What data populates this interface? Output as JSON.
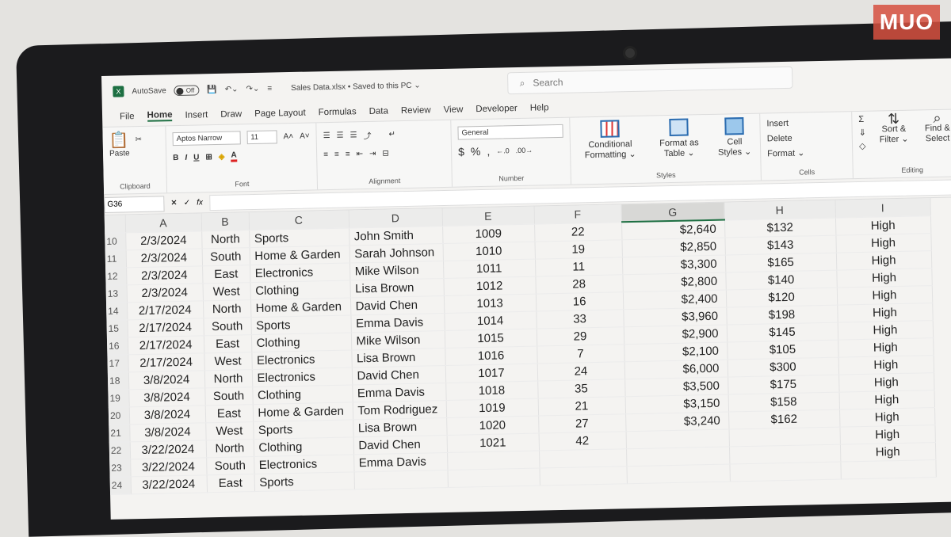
{
  "titlebar": {
    "autosave_label": "AutoSave",
    "autosave_state": "Off",
    "filename": "Sales Data.xlsx • Saved to this PC ⌄",
    "search_placeholder": "Search"
  },
  "menu": [
    "File",
    "Home",
    "Insert",
    "Draw",
    "Page Layout",
    "Formulas",
    "Data",
    "Review",
    "View",
    "Developer",
    "Help"
  ],
  "ribbon": {
    "clipboard": {
      "paste": "Paste",
      "label": "Clipboard"
    },
    "font": {
      "name": "Aptos Narrow",
      "size": "11",
      "label": "Font"
    },
    "alignment": {
      "label": "Alignment"
    },
    "number": {
      "format": "General",
      "label": "Number"
    },
    "styles": {
      "conditional": "Conditional Formatting ⌄",
      "format_table": "Format as Table ⌄",
      "cell_styles": "Cell Styles ⌄",
      "label": "Styles"
    },
    "cells": {
      "insert": "Insert",
      "delete": "Delete",
      "format": "Format ⌄",
      "label": "Cells"
    },
    "editing": {
      "sort": "Sort & Filter ⌄",
      "find": "Find & Select",
      "label": "Editing"
    }
  },
  "formula_bar": {
    "name_box": "G36",
    "fx": "fx"
  },
  "columns": [
    "A",
    "B",
    "C",
    "D",
    "E",
    "F",
    "G",
    "H",
    "I"
  ],
  "rows": [
    [
      "10",
      "2/3/2024",
      "North",
      "Sports",
      "John Smith",
      "1009",
      "22",
      "$2,640",
      "$132",
      "High"
    ],
    [
      "11",
      "2/3/2024",
      "South",
      "Home & Garden",
      "Sarah Johnson",
      "1010",
      "19",
      "$2,850",
      "$143",
      "High"
    ],
    [
      "12",
      "2/3/2024",
      "East",
      "Electronics",
      "Mike Wilson",
      "1011",
      "11",
      "$3,300",
      "$165",
      "High"
    ],
    [
      "13",
      "2/3/2024",
      "West",
      "Clothing",
      "Lisa Brown",
      "1012",
      "28",
      "$2,800",
      "$140",
      "High"
    ],
    [
      "14",
      "2/17/2024",
      "North",
      "Home & Garden",
      "David Chen",
      "1013",
      "16",
      "$2,400",
      "$120",
      "High"
    ],
    [
      "15",
      "2/17/2024",
      "South",
      "Sports",
      "Emma Davis",
      "1014",
      "33",
      "$3,960",
      "$198",
      "High"
    ],
    [
      "16",
      "2/17/2024",
      "East",
      "Clothing",
      "Mike Wilson",
      "1015",
      "29",
      "$2,900",
      "$145",
      "High"
    ],
    [
      "17",
      "2/17/2024",
      "West",
      "Electronics",
      "Lisa Brown",
      "1016",
      "7",
      "$2,100",
      "$105",
      "High"
    ],
    [
      "18",
      "3/8/2024",
      "North",
      "Electronics",
      "David Chen",
      "1017",
      "24",
      "$6,000",
      "$300",
      "High"
    ],
    [
      "19",
      "3/8/2024",
      "South",
      "Clothing",
      "Emma Davis",
      "1018",
      "35",
      "$3,500",
      "$175",
      "High"
    ],
    [
      "20",
      "3/8/2024",
      "East",
      "Home & Garden",
      "Tom Rodriguez",
      "1019",
      "21",
      "$3,150",
      "$158",
      "High"
    ],
    [
      "21",
      "3/8/2024",
      "West",
      "Sports",
      "Lisa Brown",
      "1020",
      "27",
      "$3,240",
      "$162",
      "High"
    ],
    [
      "22",
      "3/22/2024",
      "North",
      "Clothing",
      "David Chen",
      "1021",
      "42",
      "",
      "",
      "High"
    ],
    [
      "23",
      "3/22/2024",
      "South",
      "Electronics",
      "Emma Davis",
      "",
      "",
      "",
      "",
      "High"
    ],
    [
      "24",
      "3/22/2024",
      "East",
      "Sports",
      "",
      "",
      "",
      "",
      "",
      ""
    ]
  ],
  "logo_text": "MUO",
  "colors": {
    "excel_green": "#1d6f42",
    "logo_red": "#d65040"
  }
}
